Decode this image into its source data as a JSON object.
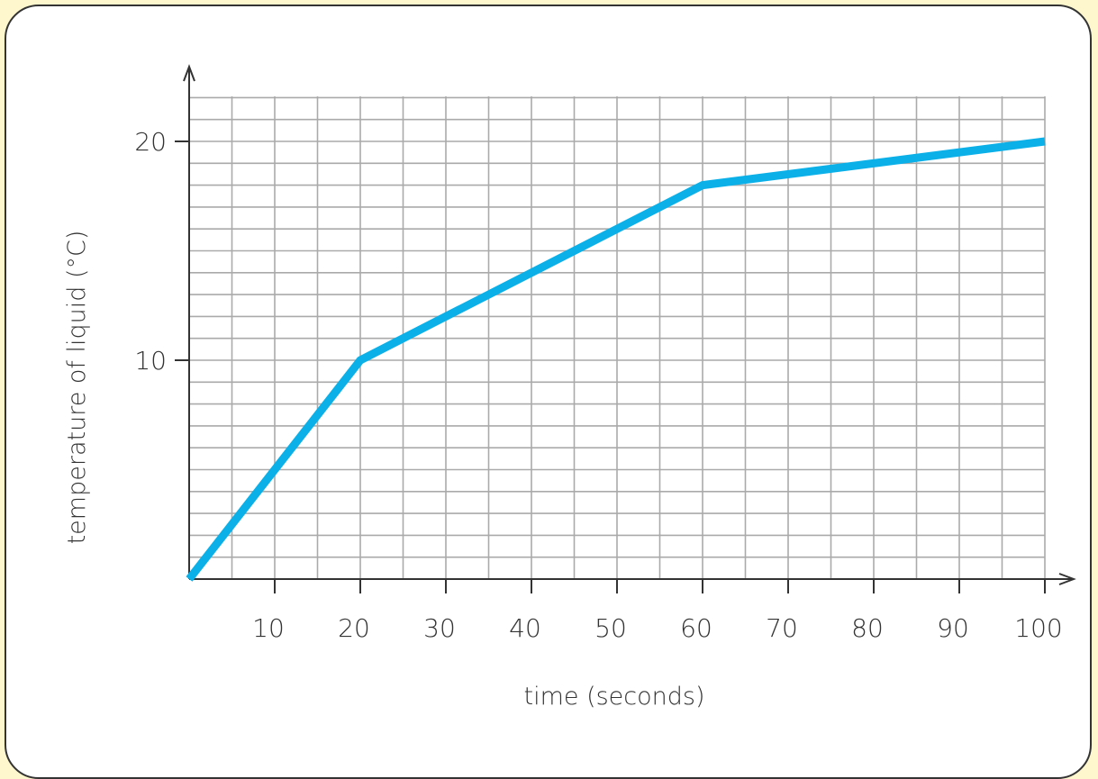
{
  "chart_data": {
    "type": "line",
    "xlabel": "time (seconds)",
    "ylabel": "temperature of liquid (°C)",
    "x_ticks": [
      "10",
      "20",
      "30",
      "40",
      "50",
      "60",
      "70",
      "80",
      "90",
      "100"
    ],
    "y_ticks": [
      "10",
      "20"
    ],
    "xlim": [
      0,
      100
    ],
    "ylim": [
      0,
      22
    ],
    "grid": true,
    "series": [
      {
        "x": [
          0,
          20,
          60,
          100
        ],
        "y": [
          0,
          10,
          18,
          20
        ]
      }
    ]
  },
  "colors": {
    "background": "#fef6cc",
    "line": "#0bb0e8",
    "grid": "#aaaaaa",
    "axis": "#333333"
  }
}
